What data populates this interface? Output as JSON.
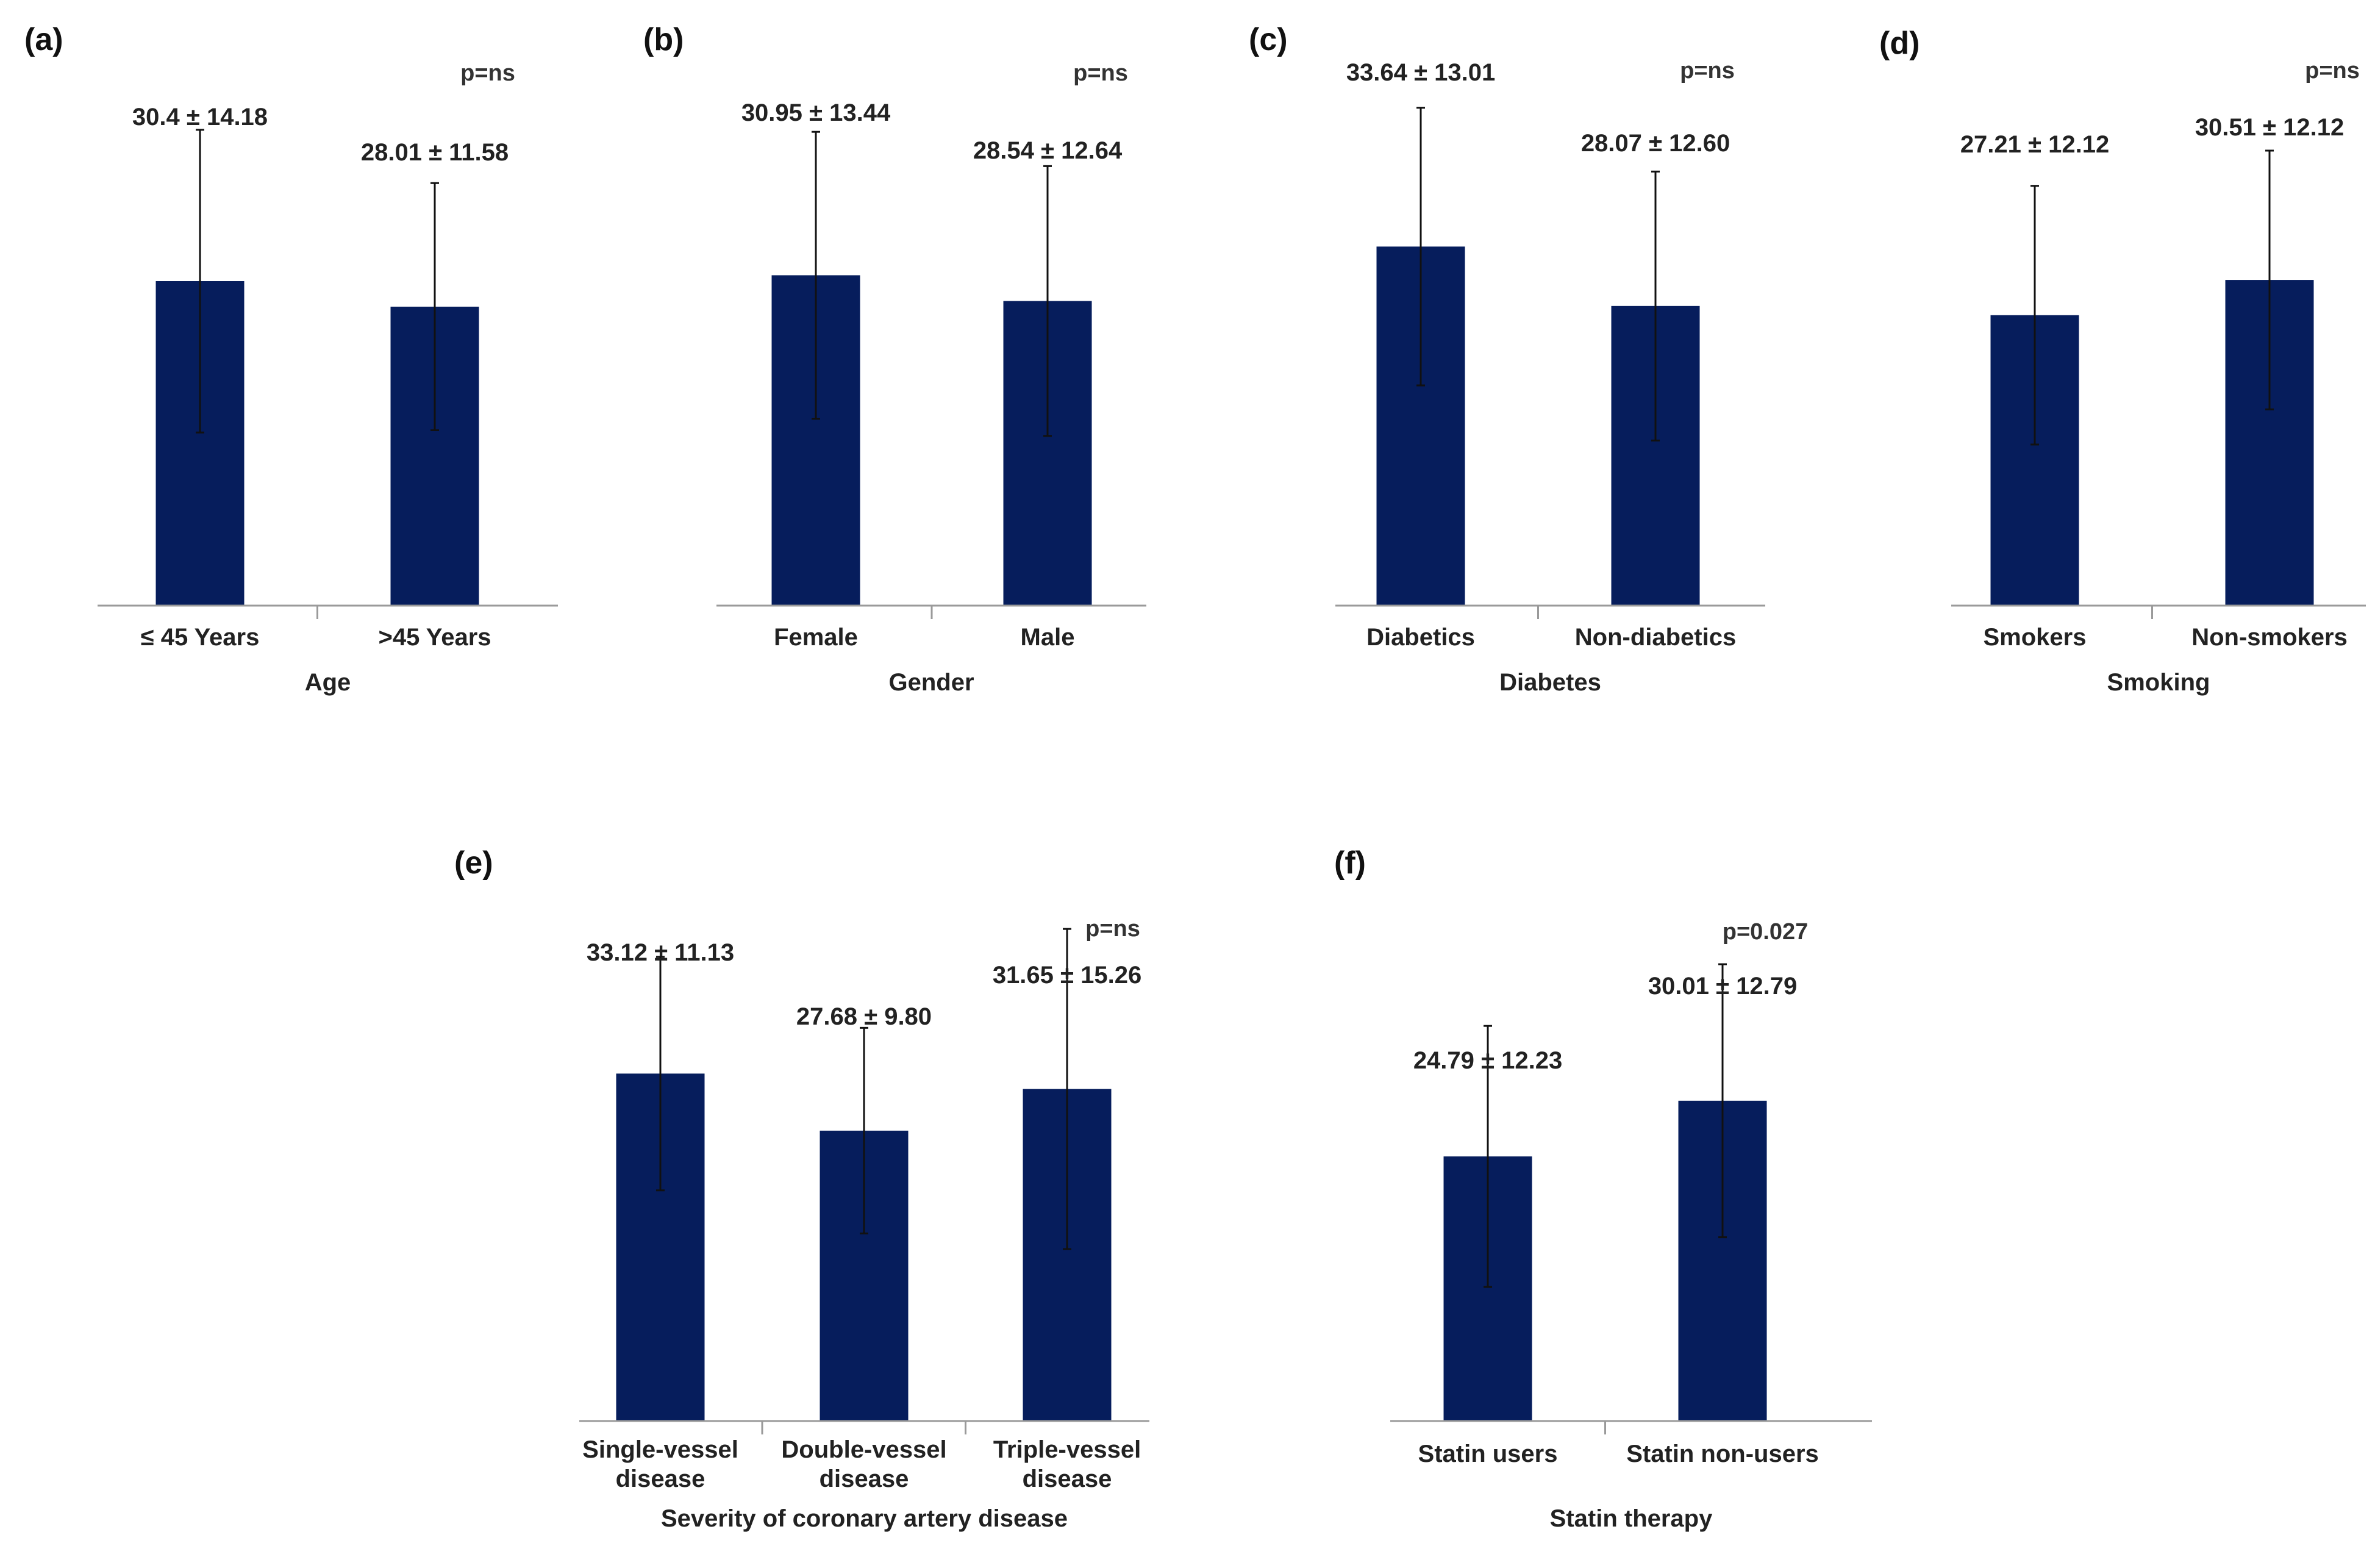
{
  "chart_data": [
    {
      "type": "bar",
      "panel": "(a)",
      "xlabel": "Age",
      "categories": [
        "≤ 45 Years",
        ">45 Years"
      ],
      "values": [
        30.4,
        28.01
      ],
      "errors": [
        14.18,
        11.58
      ],
      "value_labels": [
        "30.4 ± 14.18",
        "28.01 ± 11.58"
      ],
      "p_value": "p=ns",
      "ylim": [
        0,
        50
      ],
      "bar_color": "#061d5c"
    },
    {
      "type": "bar",
      "panel": "(b)",
      "xlabel": "Gender",
      "categories": [
        "Female",
        "Male"
      ],
      "values": [
        30.95,
        28.54
      ],
      "errors": [
        13.44,
        12.64
      ],
      "value_labels": [
        "30.95 ± 13.44",
        "28.54 ± 12.64"
      ],
      "p_value": "p=ns",
      "ylim": [
        0,
        50
      ],
      "bar_color": "#061d5c"
    },
    {
      "type": "bar",
      "panel": "(c)",
      "xlabel": "Diabetes",
      "categories": [
        "Diabetics",
        "Non-diabetics"
      ],
      "values": [
        33.64,
        28.07
      ],
      "errors": [
        13.01,
        12.6
      ],
      "value_labels": [
        "33.64 ± 13.01",
        "28.07 ± 12.60"
      ],
      "p_value": "p=ns",
      "ylim": [
        0,
        50
      ],
      "bar_color": "#061d5c"
    },
    {
      "type": "bar",
      "panel": "(d)",
      "xlabel": "Smoking",
      "categories": [
        "Smokers",
        "Non-smokers"
      ],
      "values": [
        27.21,
        30.51
      ],
      "errors": [
        12.12,
        12.12
      ],
      "value_labels": [
        "27.21 ± 12.12",
        "30.51 ± 12.12"
      ],
      "p_value": "p=ns",
      "ylim": [
        0,
        50
      ],
      "bar_color": "#061d5c"
    },
    {
      "type": "bar",
      "panel": "(e)",
      "xlabel": "Severity of coronary artery disease",
      "categories": [
        [
          "Single-vessel",
          "disease"
        ],
        [
          "Double-vessel",
          "disease"
        ],
        [
          "Triple-vessel",
          "disease"
        ]
      ],
      "values": [
        33.12,
        27.68,
        31.65
      ],
      "errors": [
        11.13,
        9.8,
        15.26
      ],
      "value_labels": [
        "33.12 ± 11.13",
        "27.68 ± 9.80",
        "31.65 ± 15.26"
      ],
      "p_value": "p=ns",
      "ylim": [
        0,
        50
      ],
      "bar_color": "#061d5c"
    },
    {
      "type": "bar",
      "panel": "(f)",
      "xlabel": "Statin therapy",
      "categories": [
        "Statin users",
        "Statin non-users"
      ],
      "values": [
        24.79,
        30.01
      ],
      "errors": [
        12.23,
        12.79
      ],
      "value_labels": [
        "24.79 ± 12.23",
        "30.01 ± 12.79"
      ],
      "p_value": "p=0.027",
      "ylim": [
        0,
        50
      ],
      "bar_color": "#061d5c"
    }
  ]
}
